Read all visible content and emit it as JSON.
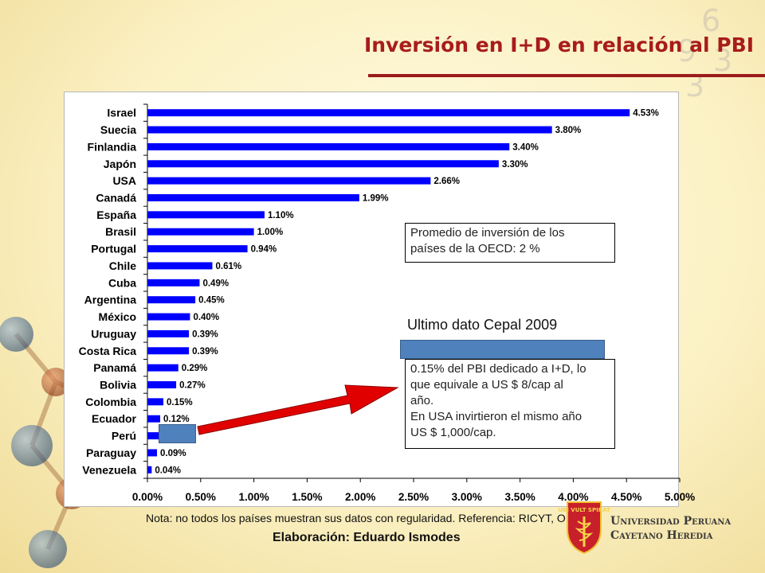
{
  "header": {
    "title": "Inversión en I+D en relación al PBI"
  },
  "chart_data": {
    "type": "bar",
    "orientation": "horizontal",
    "categories": [
      "Israel",
      "Suecia",
      "Finlandia",
      "Japón",
      "USA",
      "Canadá",
      "España",
      "Brasil",
      "Portugal",
      "Chile",
      "Cuba",
      "Argentina",
      "México",
      "Uruguay",
      "Costa Rica",
      "Panamá",
      "Bolivia",
      "Colombia",
      "Ecuador",
      "Perú",
      "Paraguay",
      "Venezuela"
    ],
    "values": [
      4.53,
      3.8,
      3.4,
      3.3,
      2.66,
      1.99,
      1.1,
      1.0,
      0.94,
      0.61,
      0.49,
      0.45,
      0.4,
      0.39,
      0.39,
      0.29,
      0.27,
      0.15,
      0.12,
      0.15,
      0.09,
      0.04
    ],
    "data_labels": [
      "4.53%",
      "3.80%",
      "3.40%",
      "3.30%",
      "2.66%",
      "1.99%",
      "1.10%",
      "1.00%",
      "0.94%",
      "0.61%",
      "0.49%",
      "0.45%",
      "0.40%",
      "0.39%",
      "0.39%",
      "0.29%",
      "0.27%",
      "0.15%",
      "0.12%",
      "",
      "0.09%",
      "0.04%"
    ],
    "xlim": [
      0,
      5
    ],
    "x_ticks": [
      0,
      0.5,
      1,
      1.5,
      2,
      2.5,
      3,
      3.5,
      4,
      4.5,
      5
    ],
    "x_tick_labels": [
      "0.00%",
      "0.50%",
      "1.00%",
      "1.50%",
      "2.00%",
      "2.50%",
      "3.00%",
      "3.50%",
      "4.00%",
      "4.50%",
      "5.00%"
    ],
    "bar_color": "#0000ff",
    "grid": false,
    "legend": "none"
  },
  "annotations": {
    "oecd_lines": [
      "Promedio de inversión de los",
      "países de la OECD:  2 %"
    ],
    "cepal_label": "Ultimo dato Cepal 2009",
    "peru_lines": [
      "0.15% del PBI dedicado a I+D, lo",
      "que equivale a US $ 8/cap al",
      "año.",
      "En USA invirtieron el mismo año",
      "US $ 1,000/cap."
    ],
    "arrow_color": "#e00000",
    "highlight_color": "#4f81bd"
  },
  "footer": {
    "note": "Nota: no todos los países muestran sus datos con regularidad. Referencia: RICYT, OECD",
    "credit": "Elaboración: Eduardo Ismodes"
  },
  "logo": {
    "crest_text": "UBI VULT SPIRAT",
    "name_line1": "Universidad Peruana",
    "name_line2": "Cayetano Heredia"
  }
}
